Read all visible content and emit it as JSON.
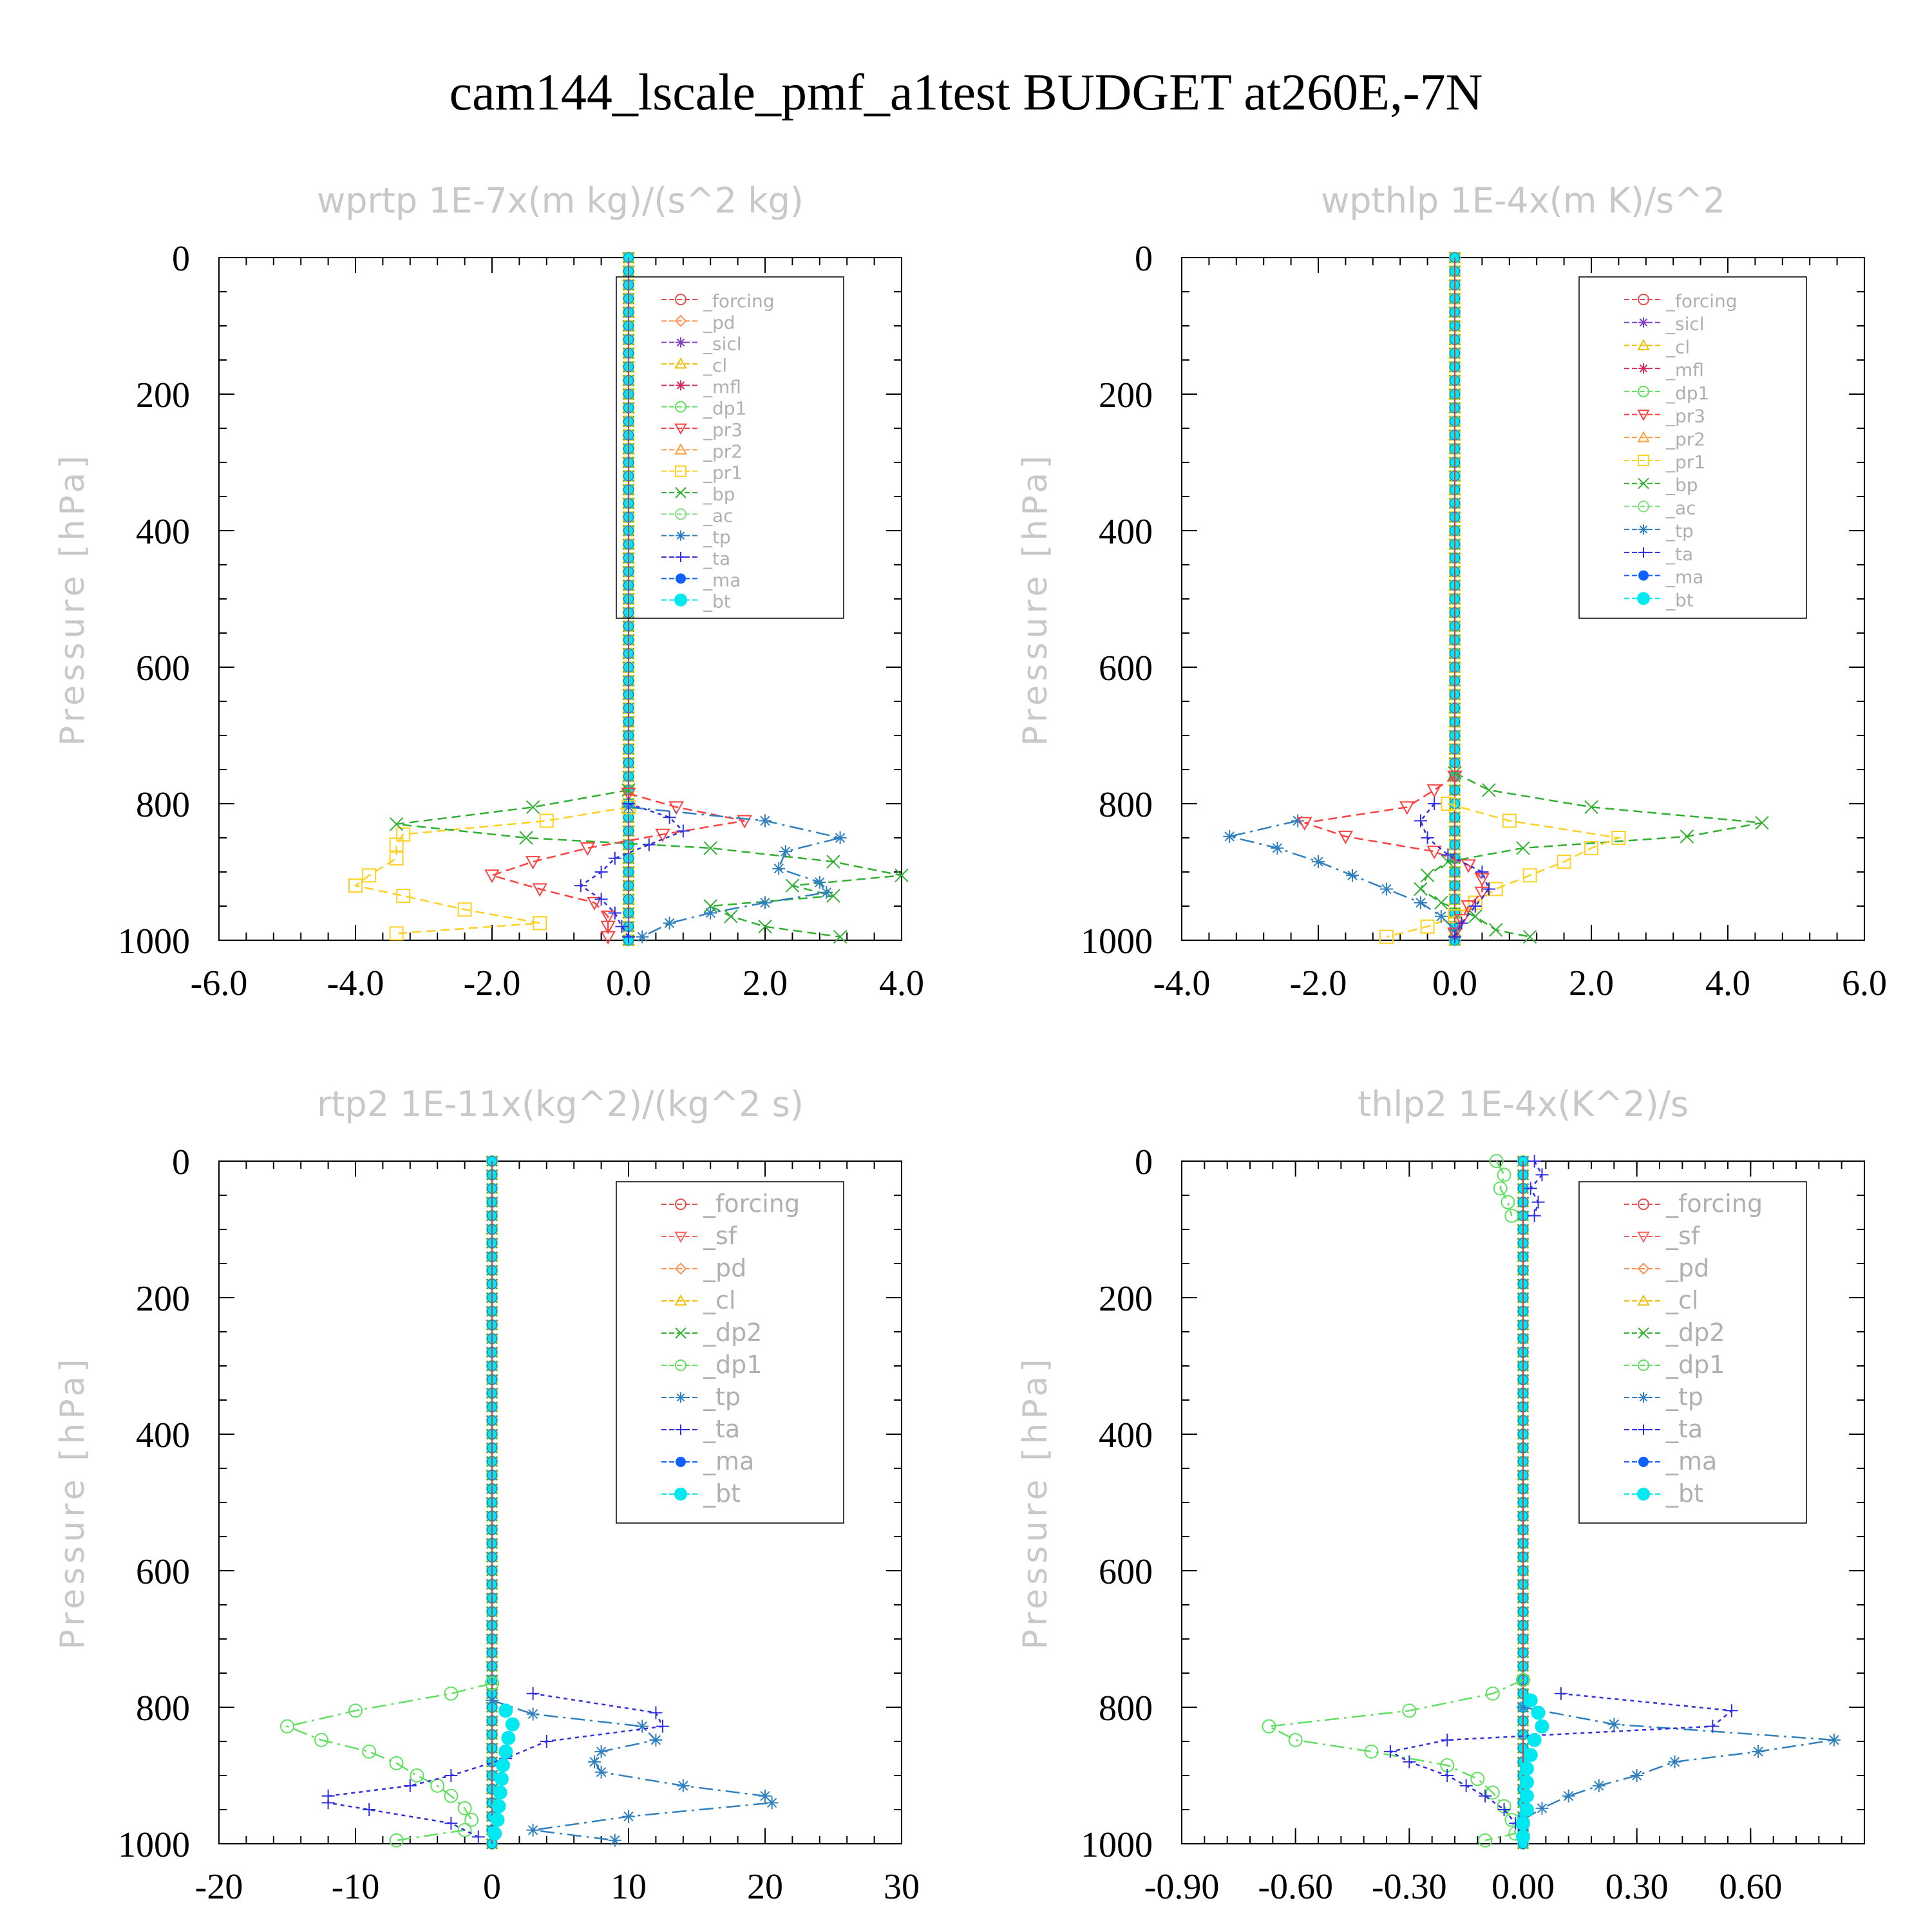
{
  "figure_title": "cam144_lscale_pmf_a1test  BUDGET at260E,-7N",
  "palette": {
    "_forcing": "#e05050",
    "_pd": "#ff9050",
    "_sicl": "#8040c0",
    "_cl": "#f0c000",
    "_mfl": "#d03060",
    "_dp1": "#60e060",
    "_dp2": "#30b030",
    "_pr3": "#ff4040",
    "_pr2": "#ffa040",
    "_pr1": "#ffd020",
    "_bp": "#30b030",
    "_ac": "#80e080",
    "_tp": "#3080c0",
    "_ta": "#3030e0",
    "_ma": "#1060ff",
    "_bt": "#00e8f0",
    "_sf": "#ff6060",
    "axis": "#000000",
    "subtitle": "#c8c8c8",
    "legend_text": "#b0b0b0"
  },
  "chart_data": [
    {
      "type": "line",
      "title": "wprtp   1E-7x(m kg)/(s^2 kg)",
      "ylabel": "Pressure [hPa]",
      "xlim": [
        -6.0,
        4.0
      ],
      "ylim": [
        1000,
        0
      ],
      "xticks": [
        "-6.0",
        "-4.0",
        "-2.0",
        "0.0",
        "2.0",
        "4.0"
      ],
      "yticks": [
        "0",
        "200",
        "400",
        "600",
        "800",
        "1000"
      ],
      "legend_position": "top-right",
      "legend": [
        "_forcing",
        "_pd",
        "_sicl",
        "_cl",
        "_mfl",
        "_dp1",
        "_pr3",
        "_pr2",
        "_pr1",
        "_bp",
        "_ac",
        "_tp",
        "_ta",
        "_ma",
        "_bt"
      ],
      "series": [
        {
          "name": "_pr1",
          "p": [
            805,
            825,
            845,
            860,
            880,
            905,
            920,
            935,
            955,
            975,
            990
          ],
          "x": [
            0.0,
            -1.2,
            -3.3,
            -3.4,
            -3.4,
            -3.8,
            -4.0,
            -3.3,
            -2.4,
            -1.3,
            -3.4
          ]
        },
        {
          "name": "_bp",
          "p": [
            780,
            805,
            830,
            850,
            865,
            885,
            905,
            920,
            935,
            950,
            965,
            980,
            995
          ],
          "x": [
            0.0,
            -1.4,
            -3.4,
            -1.5,
            1.2,
            3.0,
            4.0,
            2.4,
            3.0,
            1.2,
            1.5,
            2.0,
            3.1
          ]
        },
        {
          "name": "_pr3",
          "p": [
            785,
            805,
            825,
            845,
            865,
            885,
            905,
            925,
            945,
            965,
            980,
            995
          ],
          "x": [
            0.0,
            0.7,
            1.7,
            0.5,
            -0.6,
            -1.4,
            -2.0,
            -1.3,
            -0.5,
            -0.3,
            -0.3,
            -0.3
          ]
        },
        {
          "name": "_tp",
          "p": [
            805,
            825,
            850,
            870,
            895,
            915,
            930,
            945,
            960,
            975,
            995
          ],
          "x": [
            0.0,
            2.0,
            3.1,
            2.3,
            2.2,
            2.8,
            2.9,
            2.0,
            1.2,
            0.6,
            0.2
          ]
        },
        {
          "name": "_ta",
          "p": [
            800,
            820,
            840,
            860,
            880,
            900,
            920,
            940,
            960,
            980,
            995
          ],
          "x": [
            0.0,
            0.6,
            0.8,
            0.3,
            -0.2,
            -0.4,
            -0.7,
            -0.4,
            -0.2,
            -0.1,
            0.0
          ]
        }
      ]
    },
    {
      "type": "line",
      "title": "wpthlp   1E-4x(m K)/s^2",
      "ylabel": "Pressure [hPa]",
      "xlim": [
        -4.0,
        6.0
      ],
      "ylim": [
        1000,
        0
      ],
      "xticks": [
        "-4.0",
        "-2.0",
        "0.0",
        "2.0",
        "4.0",
        "6.0"
      ],
      "yticks": [
        "0",
        "200",
        "400",
        "600",
        "800",
        "1000"
      ],
      "legend_position": "top-right",
      "legend": [
        "_forcing",
        "_sicl",
        "_cl",
        "_mfl",
        "_dp1",
        "_pr3",
        "_pr2",
        "_pr1",
        "_bp",
        "_ac",
        "_tp",
        "_ta",
        "_ma",
        "_bt"
      ],
      "series": [
        {
          "name": "_bp",
          "p": [
            755,
            780,
            805,
            828,
            848,
            865,
            885,
            905,
            925,
            945,
            965,
            985,
            995
          ],
          "x": [
            0.0,
            0.5,
            2.0,
            4.5,
            3.4,
            1.0,
            -0.1,
            -0.4,
            -0.5,
            -0.2,
            0.3,
            0.6,
            1.1
          ]
        },
        {
          "name": "_pr1",
          "p": [
            800,
            825,
            850,
            865,
            885,
            905,
            925,
            945,
            965,
            980,
            995
          ],
          "x": [
            -0.1,
            0.8,
            2.4,
            2.0,
            1.6,
            1.1,
            0.6,
            0.3,
            0.0,
            -0.4,
            -1.0
          ]
        },
        {
          "name": "_tp",
          "p": [
            825,
            848,
            865,
            885,
            905,
            925,
            945,
            965,
            985,
            995
          ],
          "x": [
            -2.3,
            -3.3,
            -2.6,
            -2.0,
            -1.5,
            -1.0,
            -0.5,
            -0.2,
            0.0,
            0.0
          ]
        },
        {
          "name": "_pr3",
          "p": [
            760,
            780,
            805,
            828,
            848,
            870,
            890,
            910,
            930,
            950,
            970,
            990
          ],
          "x": [
            0.0,
            -0.3,
            -0.7,
            -2.2,
            -1.6,
            -0.3,
            0.2,
            0.4,
            0.4,
            0.2,
            0.1,
            0.0
          ]
        },
        {
          "name": "_ta",
          "p": [
            800,
            825,
            850,
            875,
            900,
            925,
            950,
            975,
            995
          ],
          "x": [
            -0.3,
            -0.5,
            -0.4,
            -0.1,
            0.4,
            0.5,
            0.3,
            0.1,
            0.0
          ]
        }
      ]
    },
    {
      "type": "line",
      "title": "rtp2   1E-11x(kg^2)/(kg^2 s)",
      "ylabel": "Pressure [hPa]",
      "xlim": [
        -20,
        30
      ],
      "ylim": [
        1000,
        0
      ],
      "xticks": [
        "-20",
        "-10",
        "0",
        "10",
        "20",
        "30"
      ],
      "yticks": [
        "0",
        "200",
        "400",
        "600",
        "800",
        "1000"
      ],
      "legend_position": "top-right",
      "legend": [
        "_forcing",
        "_sf",
        "_pd",
        "_cl",
        "_dp2",
        "_dp1",
        "_tp",
        "_ta",
        "_ma",
        "_bt"
      ],
      "series": [
        {
          "name": "_dp1",
          "p": [
            765,
            780,
            805,
            828,
            848,
            865,
            882,
            900,
            915,
            930,
            948,
            965,
            980,
            995
          ],
          "x": [
            0.0,
            -3.0,
            -10.0,
            -15.0,
            -12.5,
            -9.0,
            -7.0,
            -5.5,
            -4.0,
            -3.0,
            -2.0,
            -1.5,
            -2.0,
            -7.0
          ]
        },
        {
          "name": "_tp",
          "p": [
            790,
            810,
            828,
            848,
            865,
            880,
            895,
            915,
            930,
            940,
            960,
            980,
            995
          ],
          "x": [
            0.0,
            3.0,
            11.0,
            12.0,
            8.0,
            7.5,
            8.0,
            14.0,
            20.0,
            20.5,
            10.0,
            3.0,
            9.0
          ]
        },
        {
          "name": "_ta",
          "p": [
            780,
            808,
            828,
            850,
            875,
            900,
            915,
            930,
            940,
            950,
            970,
            990
          ],
          "x": [
            3.0,
            12.0,
            12.5,
            4.0,
            1.0,
            -3.0,
            -6.0,
            -12.0,
            -12.0,
            -9.0,
            -3.0,
            -1.0
          ]
        },
        {
          "name": "_bt",
          "p": [
            805,
            825,
            845,
            865,
            885,
            905,
            925,
            945,
            965,
            985
          ],
          "x": [
            1.0,
            1.5,
            1.2,
            1.0,
            0.8,
            0.7,
            0.6,
            0.5,
            0.4,
            0.2
          ]
        }
      ]
    },
    {
      "type": "line",
      "title": "thlp2   1E-4x(K^2)/s",
      "ylabel": "Pressure [hPa]",
      "xlim": [
        -0.9,
        0.9
      ],
      "ylim": [
        1000,
        0
      ],
      "xticks": [
        "-0.90",
        "-0.60",
        "-0.30",
        "0.00",
        "0.30",
        "0.60"
      ],
      "yticks": [
        "0",
        "200",
        "400",
        "600",
        "800",
        "1000"
      ],
      "legend_position": "top-right",
      "legend": [
        "_forcing",
        "_sf",
        "_pd",
        "_cl",
        "_dp2",
        "_dp1",
        "_tp",
        "_ta",
        "_ma",
        "_bt"
      ],
      "series": [
        {
          "name": "_dp1",
          "p": [
            760,
            780,
            805,
            828,
            848,
            865,
            885,
            905,
            925,
            945,
            965,
            985,
            995
          ],
          "x": [
            0.0,
            -0.08,
            -0.3,
            -0.67,
            -0.6,
            -0.4,
            -0.2,
            -0.12,
            -0.08,
            -0.05,
            -0.03,
            -0.02,
            -0.1
          ]
        },
        {
          "name": "_tp",
          "p": [
            800,
            825,
            848,
            865,
            880,
            900,
            915,
            930,
            948,
            965,
            985
          ],
          "x": [
            0.0,
            0.24,
            0.82,
            0.62,
            0.4,
            0.3,
            0.2,
            0.12,
            0.05,
            0.0,
            0.0
          ]
        },
        {
          "name": "_ta",
          "p": [
            780,
            805,
            828,
            848,
            865,
            880,
            900,
            915,
            930,
            950,
            970,
            990
          ],
          "x": [
            0.1,
            0.55,
            0.5,
            -0.2,
            -0.35,
            -0.3,
            -0.2,
            -0.15,
            -0.1,
            -0.05,
            -0.02,
            0.0
          ]
        },
        {
          "name": "_bt",
          "p": [
            790,
            808,
            828,
            848,
            870,
            890,
            910,
            930,
            950,
            970,
            990
          ],
          "x": [
            0.02,
            0.04,
            0.05,
            0.03,
            0.02,
            0.01,
            0.01,
            0.01,
            0.01,
            0.0,
            0.0
          ]
        },
        {
          "name": "_dp1",
          "p": [
            0,
            20,
            40,
            60,
            80
          ],
          "x": [
            -0.07,
            -0.05,
            -0.06,
            -0.04,
            -0.03
          ]
        },
        {
          "name": "_ta",
          "p": [
            0,
            20,
            40,
            60,
            80
          ],
          "x": [
            0.03,
            0.05,
            0.02,
            0.04,
            0.03
          ]
        }
      ]
    }
  ]
}
